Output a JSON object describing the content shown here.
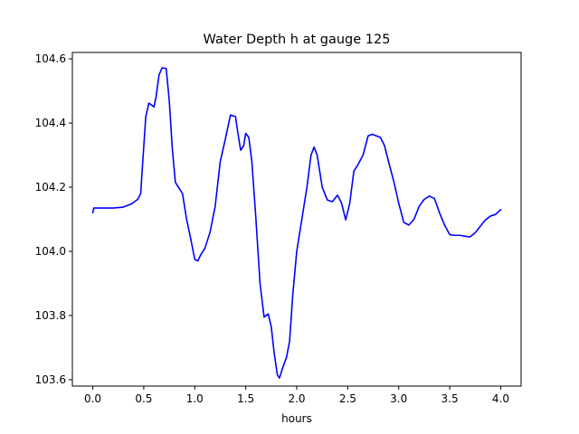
{
  "chart_data": {
    "type": "line",
    "title": "Water Depth h at gauge 125",
    "xlabel": "hours",
    "ylabel": "",
    "xlim": [
      -0.2,
      4.2
    ],
    "ylim": [
      103.58,
      104.62
    ],
    "xticks": [
      0.0,
      0.5,
      1.0,
      1.5,
      2.0,
      2.5,
      3.0,
      3.5,
      4.0
    ],
    "xtick_labels": [
      "0.0",
      "0.5",
      "1.0",
      "1.5",
      "2.0",
      "2.5",
      "3.0",
      "3.5",
      "4.0"
    ],
    "yticks": [
      103.6,
      103.8,
      104.0,
      104.2,
      104.4,
      104.6
    ],
    "ytick_labels": [
      "103.6",
      "103.8",
      "104.0",
      "104.2",
      "104.4",
      "104.6"
    ],
    "grid": false,
    "series": [
      {
        "color": "#0000ff",
        "x": [
          0.0,
          0.01,
          0.1,
          0.2,
          0.3,
          0.38,
          0.44,
          0.47,
          0.49,
          0.52,
          0.55,
          0.58,
          0.6,
          0.62,
          0.65,
          0.68,
          0.72,
          0.75,
          0.78,
          0.81,
          0.84,
          0.88,
          0.92,
          0.96,
          1.0,
          1.03,
          1.06,
          1.1,
          1.15,
          1.2,
          1.25,
          1.3,
          1.35,
          1.4,
          1.42,
          1.45,
          1.48,
          1.5,
          1.53,
          1.56,
          1.6,
          1.64,
          1.68,
          1.72,
          1.75,
          1.78,
          1.81,
          1.83,
          1.86,
          1.9,
          1.93,
          1.96,
          2.0,
          2.05,
          2.1,
          2.14,
          2.17,
          2.2,
          2.25,
          2.3,
          2.35,
          2.4,
          2.44,
          2.48,
          2.52,
          2.56,
          2.6,
          2.65,
          2.7,
          2.74,
          2.78,
          2.82,
          2.86,
          2.9,
          2.95,
          3.0,
          3.05,
          3.1,
          3.15,
          3.2,
          3.25,
          3.3,
          3.35,
          3.4,
          3.45,
          3.5,
          3.55,
          3.6,
          3.65,
          3.7,
          3.75,
          3.8,
          3.85,
          3.9,
          3.95,
          4.0
        ],
        "y": [
          104.12,
          104.135,
          104.135,
          104.135,
          104.138,
          104.148,
          104.162,
          104.18,
          104.28,
          104.42,
          104.462,
          104.455,
          104.45,
          104.48,
          104.55,
          104.572,
          104.57,
          104.47,
          104.32,
          104.215,
          104.2,
          104.18,
          104.1,
          104.04,
          103.975,
          103.97,
          103.99,
          104.01,
          104.06,
          104.14,
          104.28,
          104.35,
          104.425,
          104.42,
          104.375,
          104.315,
          104.33,
          104.368,
          104.355,
          104.28,
          104.1,
          103.9,
          103.795,
          103.805,
          103.765,
          103.68,
          103.615,
          103.605,
          103.635,
          103.67,
          103.72,
          103.86,
          104.0,
          104.1,
          104.2,
          104.3,
          104.325,
          104.3,
          104.2,
          104.16,
          104.155,
          104.175,
          104.15,
          104.098,
          104.15,
          104.25,
          104.27,
          104.3,
          104.36,
          104.365,
          104.36,
          104.355,
          104.33,
          104.28,
          104.22,
          104.15,
          104.09,
          104.082,
          104.1,
          104.14,
          104.162,
          104.172,
          104.165,
          104.12,
          104.082,
          104.052,
          104.05,
          104.05,
          104.047,
          104.045,
          104.058,
          104.078,
          104.098,
          104.11,
          104.115,
          104.13
        ]
      }
    ]
  }
}
